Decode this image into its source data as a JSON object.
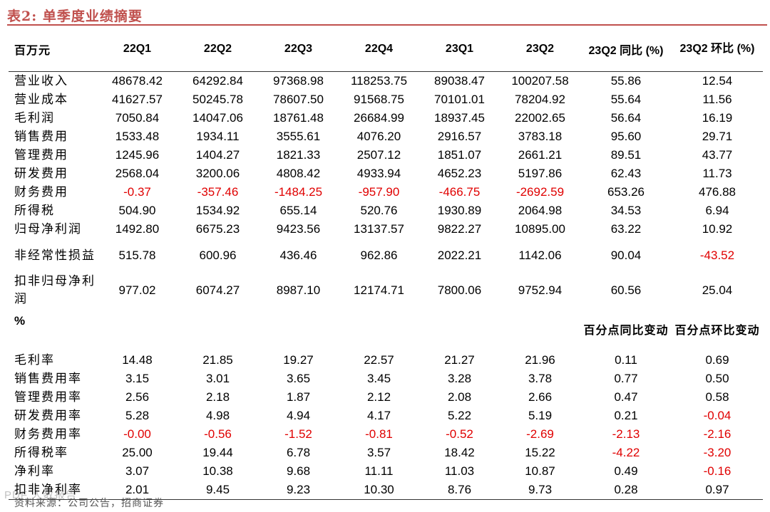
{
  "title": "表2:  单季度业绩摘要",
  "colors": {
    "accent": "#c0504d",
    "negative": "#e00000"
  },
  "headers": [
    "百万元",
    "22Q1",
    "22Q2",
    "22Q3",
    "22Q4",
    "23Q1",
    "23Q2",
    "23Q2 同比 (%)",
    "23Q2 环比 (%)"
  ],
  "amount_rows": [
    {
      "label": "营业收入",
      "values": [
        "48678.42",
        "64292.84",
        "97368.98",
        "118253.75",
        "89038.47",
        "100207.58",
        "55.86",
        "12.54"
      ]
    },
    {
      "label": "营业成本",
      "values": [
        "41627.57",
        "50245.78",
        "78607.50",
        "91568.75",
        "70101.01",
        "78204.92",
        "55.64",
        "11.56"
      ]
    },
    {
      "label": "毛利润",
      "values": [
        "7050.84",
        "14047.06",
        "18761.48",
        "26684.99",
        "18937.45",
        "22002.65",
        "56.64",
        "16.19"
      ]
    },
    {
      "label": "销售费用",
      "values": [
        "1533.48",
        "1934.11",
        "3555.61",
        "4076.20",
        "2916.57",
        "3783.18",
        "95.60",
        "29.71"
      ]
    },
    {
      "label": "管理费用",
      "values": [
        "1245.96",
        "1404.27",
        "1821.33",
        "2507.12",
        "1851.07",
        "2661.21",
        "89.51",
        "43.77"
      ]
    },
    {
      "label": "研发费用",
      "values": [
        "2568.04",
        "3200.06",
        "4808.42",
        "4933.94",
        "4652.23",
        "5197.86",
        "62.43",
        "11.73"
      ]
    },
    {
      "label": "财务费用",
      "values": [
        "-0.37",
        "-357.46",
        "-1484.25",
        "-957.90",
        "-466.75",
        "-2692.59",
        "653.26",
        "476.88"
      ]
    },
    {
      "label": "所得税",
      "values": [
        "504.90",
        "1534.92",
        "655.14",
        "520.76",
        "1930.89",
        "2064.98",
        "34.53",
        "6.94"
      ]
    },
    {
      "label": "归母净利润",
      "values": [
        "1492.80",
        "6675.23",
        "9423.56",
        "13137.57",
        "9822.27",
        "10895.00",
        "63.22",
        "10.92"
      ]
    },
    {
      "label": "非经常性损益",
      "values": [
        "515.78",
        "600.96",
        "436.46",
        "962.86",
        "2022.21",
        "1142.06",
        "90.04",
        "-43.52"
      ]
    },
    {
      "label": "扣非归母净利润",
      "values": [
        "977.02",
        "6074.27",
        "8987.10",
        "12174.71",
        "7800.06",
        "9752.94",
        "60.56",
        "25.04"
      ]
    }
  ],
  "ratio_header": {
    "label": "%",
    "yoy": "百分点同比变动",
    "qoq": "百分点环比变动"
  },
  "ratio_rows": [
    {
      "label": "毛利率",
      "values": [
        "14.48",
        "21.85",
        "19.27",
        "22.57",
        "21.27",
        "21.96",
        "0.11",
        "0.69"
      ]
    },
    {
      "label": "销售费用率",
      "values": [
        "3.15",
        "3.01",
        "3.65",
        "3.45",
        "3.28",
        "3.78",
        "0.77",
        "0.50"
      ]
    },
    {
      "label": "管理费用率",
      "values": [
        "2.56",
        "2.18",
        "1.87",
        "2.12",
        "2.08",
        "2.66",
        "0.47",
        "0.58"
      ]
    },
    {
      "label": "研发费用率",
      "values": [
        "5.28",
        "4.98",
        "4.94",
        "4.17",
        "5.22",
        "5.19",
        "0.21",
        "-0.04"
      ]
    },
    {
      "label": "财务费用率",
      "values": [
        "-0.00",
        "-0.56",
        "-1.52",
        "-0.81",
        "-0.52",
        "-2.69",
        "-2.13",
        "-2.16"
      ]
    },
    {
      "label": "所得税率",
      "values": [
        "25.00",
        "19.44",
        "6.78",
        "3.57",
        "18.42",
        "15.22",
        "-4.22",
        "-3.20"
      ]
    },
    {
      "label": "净利率",
      "values": [
        "3.07",
        "10.38",
        "9.68",
        "11.11",
        "11.03",
        "10.87",
        "0.49",
        "-0.16"
      ]
    },
    {
      "label": "扣非净利率",
      "values": [
        "2.01",
        "9.45",
        "9.23",
        "10.30",
        "8.76",
        "9.73",
        "0.28",
        "0.97"
      ]
    }
  ],
  "source": "资料来源：公司公告，招商证券",
  "watermark": "PDF 人数报告"
}
